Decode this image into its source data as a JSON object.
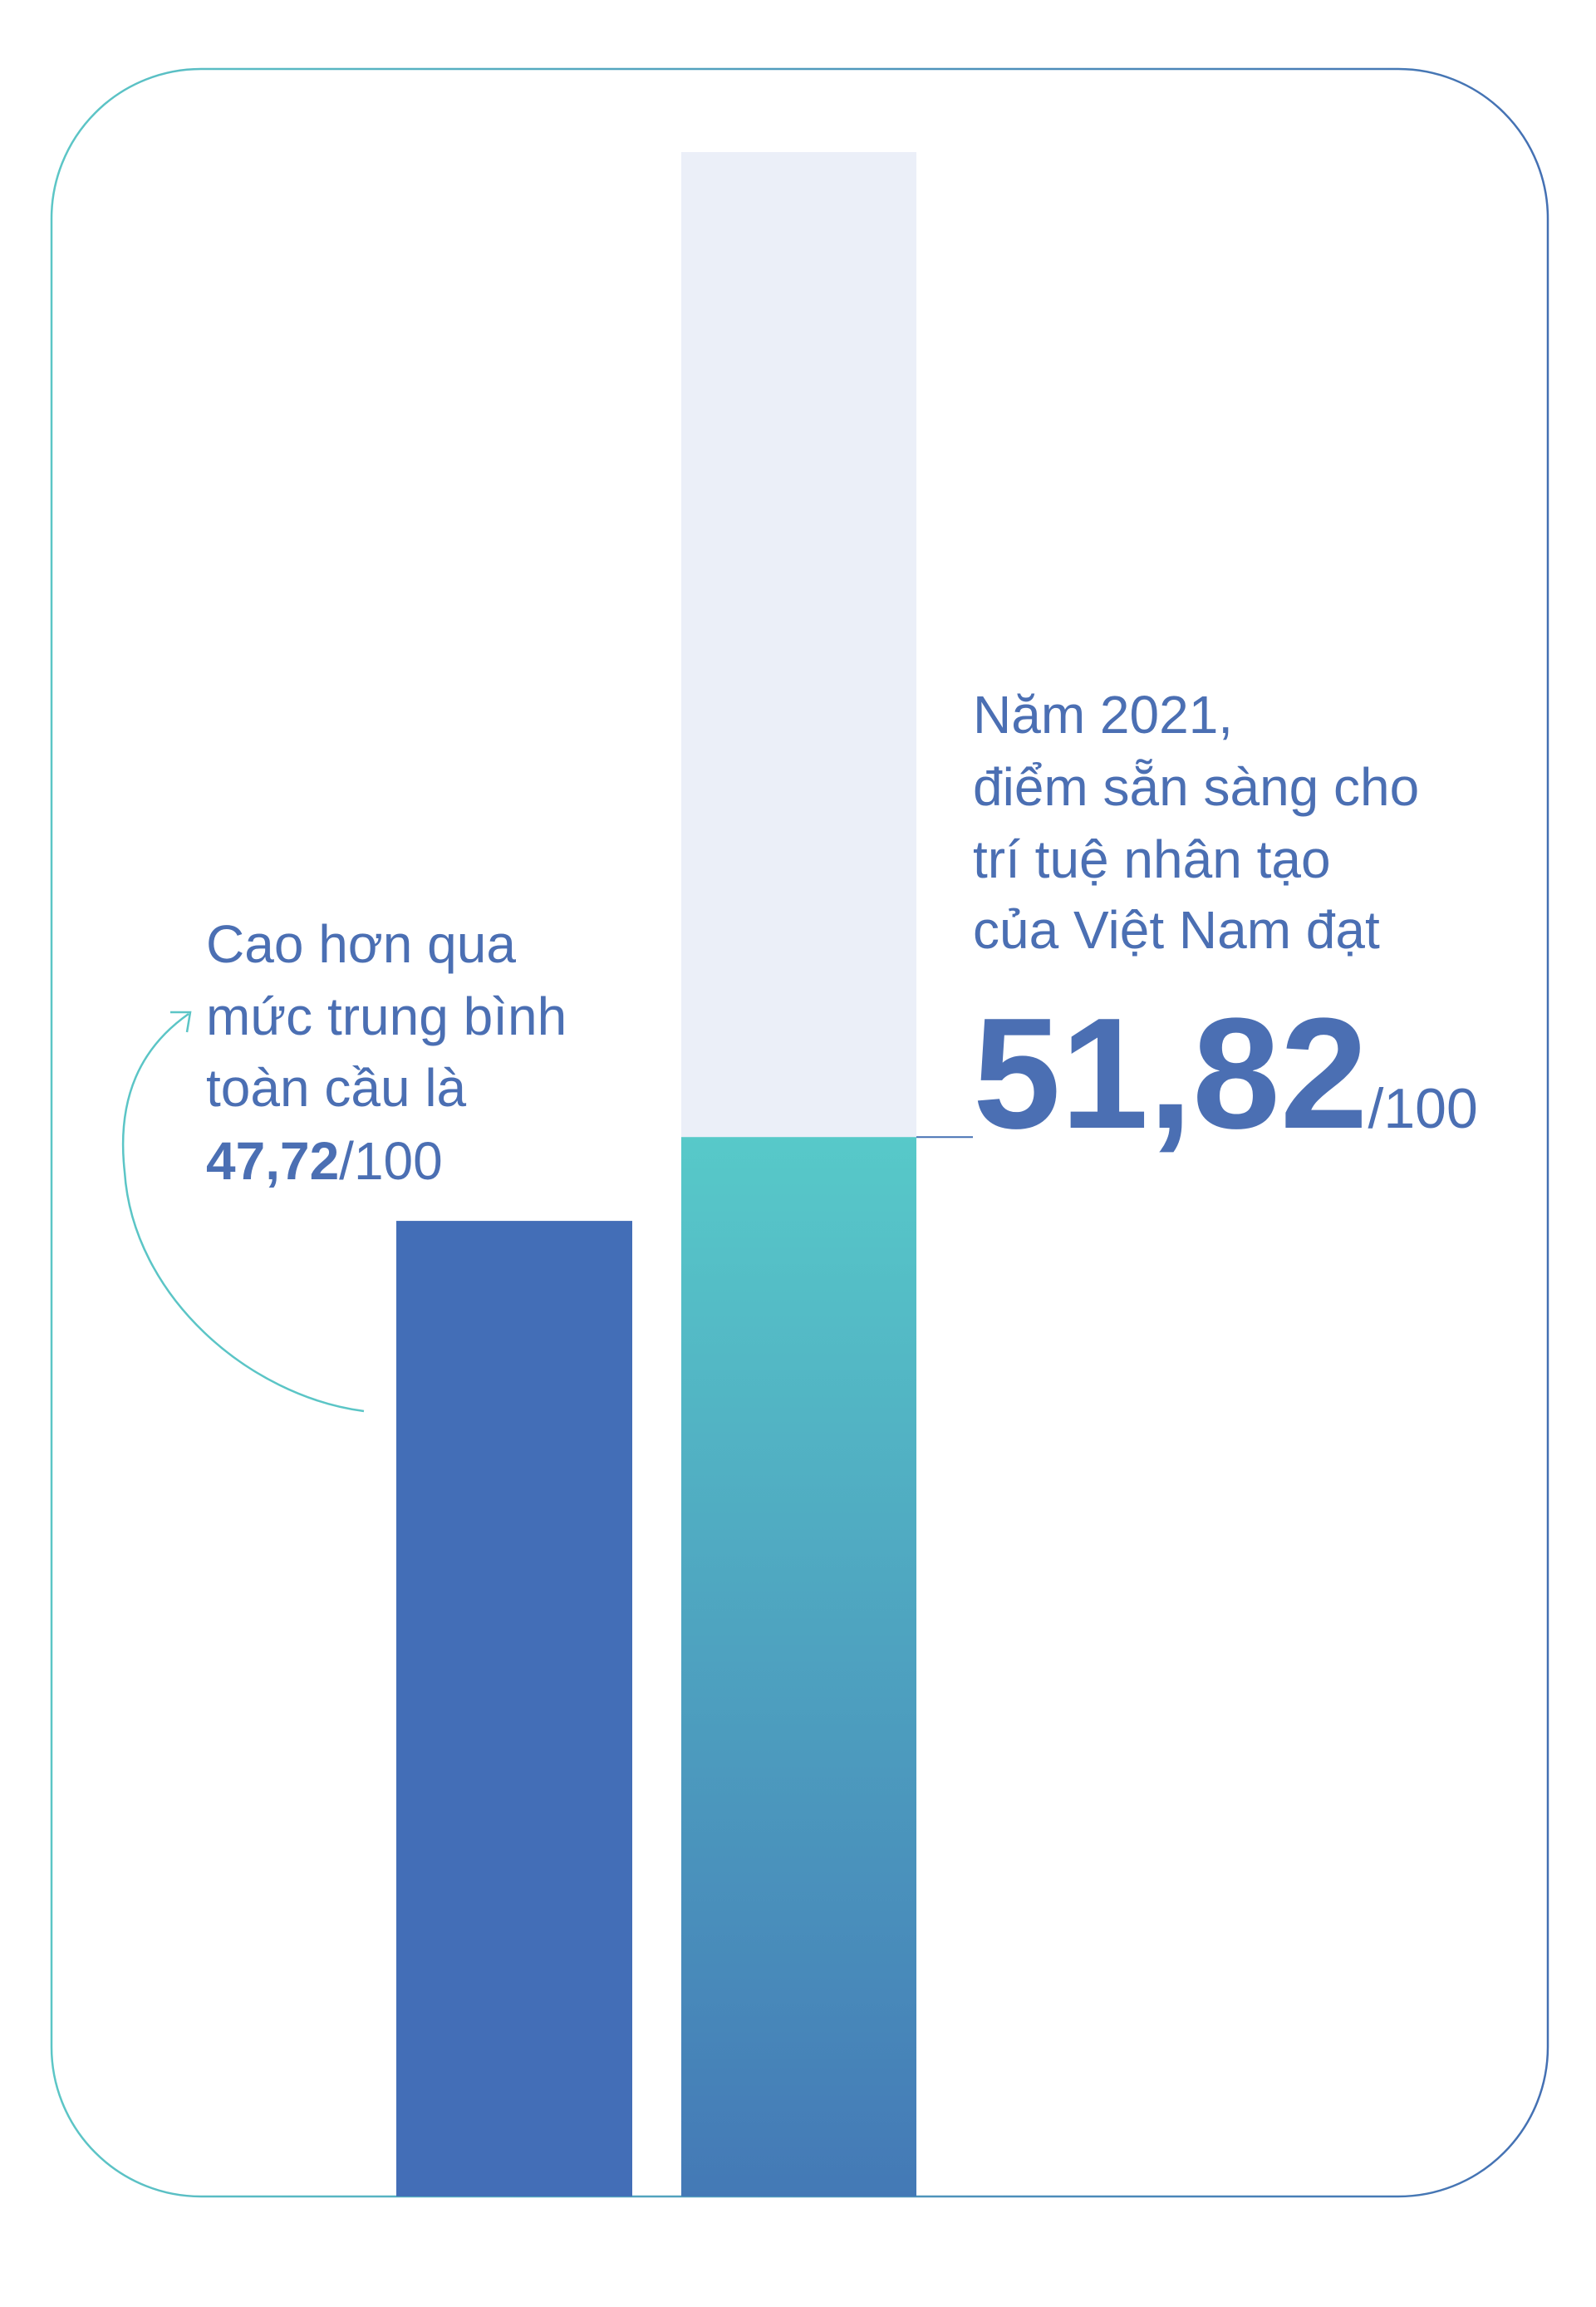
{
  "chart_data": {
    "type": "bar",
    "values": [
      47.72,
      51.82
    ],
    "value_labels": [
      "47,72",
      "51,82"
    ],
    "scale_label": "/100",
    "colors": [
      "#436eb7",
      "#57c9c9"
    ],
    "gradient_end": "#4479b6",
    "track_color": "#ebeff8",
    "ylim": [
      0,
      100
    ],
    "annotations": [
      {
        "lines": [
          "Cao hơn qua",
          "mức trung bình",
          "toàn cầu là"
        ]
      },
      {
        "lines": [
          "Năm 2021,",
          "điểm sẵn sàng cho",
          "trí tuệ nhân tạo",
          "của Việt Nam đạt"
        ]
      }
    ]
  }
}
